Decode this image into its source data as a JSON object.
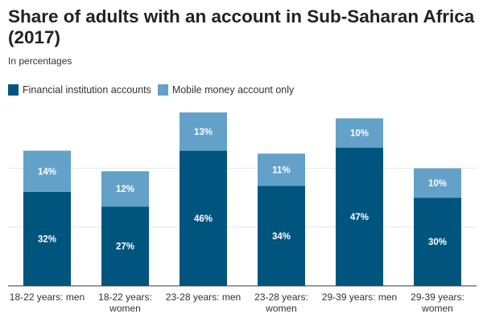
{
  "chart_data": {
    "type": "bar",
    "stacked": true,
    "title": "Share of adults with an account in Sub-Saharan Africa (2017)",
    "subtitle": "In percentages",
    "categories": [
      [
        "18-22 years: men"
      ],
      [
        "18-22 years:",
        "women"
      ],
      [
        "23-28 years: men"
      ],
      [
        "23-28 years:",
        "women"
      ],
      [
        "29-39 years: men"
      ],
      [
        "29-39 years:",
        "women"
      ]
    ],
    "series": [
      {
        "name": "Financial institution accounts",
        "color": "#00557f",
        "values": [
          32,
          27,
          46,
          34,
          47,
          30
        ]
      },
      {
        "name": "Mobile money account only",
        "color": "#63a1c9",
        "values": [
          14,
          12,
          13,
          11,
          10,
          10
        ]
      }
    ],
    "ylim": [
      0,
      60
    ],
    "gridlines": [
      20,
      40
    ],
    "grid": true,
    "legend": "top-left",
    "xlabel": "",
    "ylabel": ""
  }
}
